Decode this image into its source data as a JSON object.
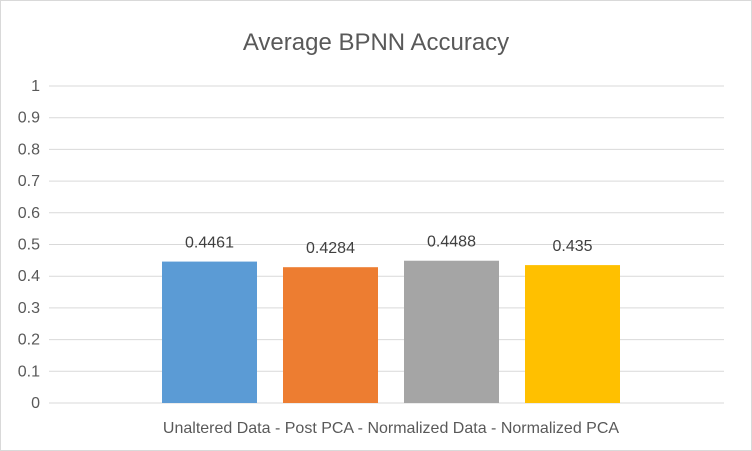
{
  "chart_data": {
    "type": "bar",
    "title": "Average BPNN Accuracy",
    "categories": [
      "",
      "",
      "",
      ""
    ],
    "category_axis_label": "Unaltered Data - Post PCA - Normalized Data - Normalized PCA",
    "series": [
      {
        "values": [
          0.4461,
          0.4284,
          0.4488,
          0.435
        ],
        "colors": [
          "#5b9bd5",
          "#ed7d31",
          "#a5a5a5",
          "#ffc000"
        ]
      }
    ],
    "data_labels": [
      "0.4461",
      "0.4284",
      "0.4488",
      "0.435"
    ],
    "ylim": [
      0,
      1
    ],
    "yticks": [
      0,
      0.1,
      0.2,
      0.3,
      0.4,
      0.5,
      0.6,
      0.7,
      0.8,
      0.9,
      1
    ],
    "ytick_labels": [
      "0",
      "0.1",
      "0.2",
      "0.3",
      "0.4",
      "0.5",
      "0.6",
      "0.7",
      "0.8",
      "0.9",
      "1"
    ],
    "grid": true,
    "legend": "none"
  }
}
